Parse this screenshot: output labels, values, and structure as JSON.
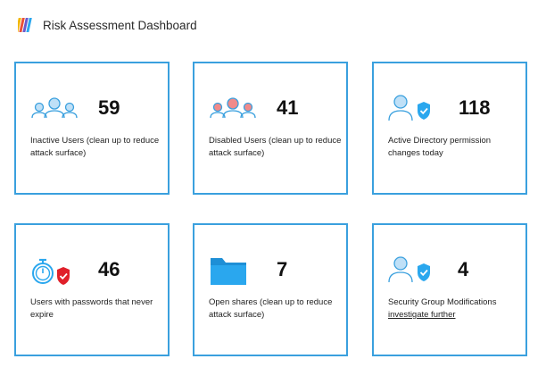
{
  "header": {
    "title": "Risk Assessment Dashboard",
    "logo_icon": "striped-logo-icon"
  },
  "colors": {
    "border": "#3aa0de",
    "icon_fill": "#bfe0f7",
    "icon_stroke": "#3aa0de",
    "disabled_fill": "#f08a8a",
    "shield_red": "#e0202a",
    "folder": "#2aa7ee"
  },
  "cards": [
    {
      "value": "59",
      "description": "Inactive Users (clean up to reduce attack surface)",
      "icon": "users-group-icon"
    },
    {
      "value": "41",
      "description": "Disabled Users (clean up to reduce attack surface)",
      "icon": "disabled-users-icon"
    },
    {
      "value": "118",
      "description": "Active Directory permission changes today",
      "icon": "user-shield-icon"
    },
    {
      "value": "46",
      "description": "Users with passwords that never expire",
      "icon": "stopwatch-shield-icon"
    },
    {
      "value": "7",
      "description": "Open shares (clean up to reduce attack surface)",
      "icon": "folder-icon"
    },
    {
      "value": "4",
      "description": "Security Group Modifications",
      "link": "investigate further",
      "icon": "user-shield-icon"
    }
  ]
}
